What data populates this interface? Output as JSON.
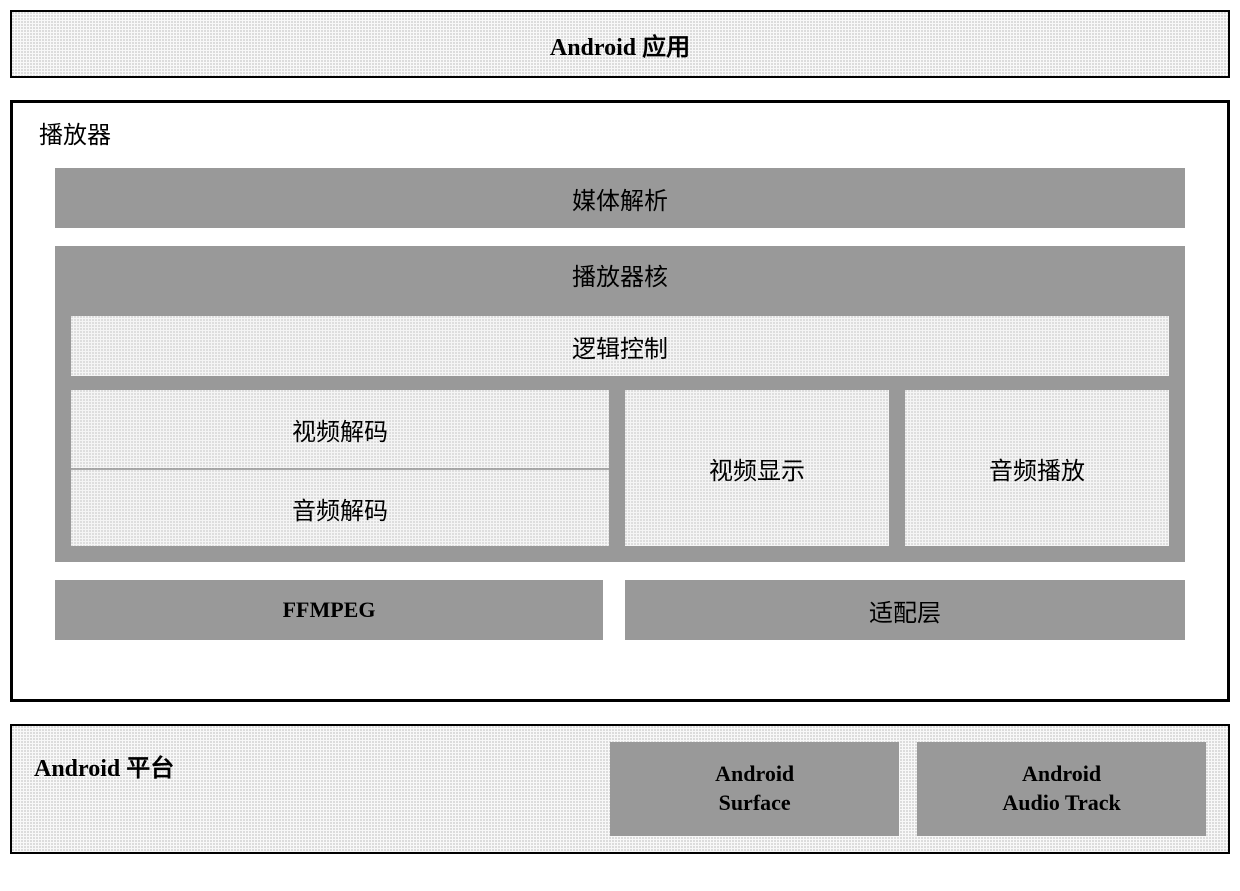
{
  "diagram": {
    "type": "architecture-block-diagram",
    "background_color": "#ffffff",
    "light_fill": "#f8f8f8",
    "dark_fill": "#b0b0b0",
    "border_color": "#000000",
    "text_color": "#000000",
    "title_fontsize": 24,
    "label_fontsize": 24,
    "english_fontsize": 22
  },
  "top": {
    "label": "Android 应用"
  },
  "player": {
    "title": "播放器",
    "media_parse": "媒体解析",
    "core": {
      "title": "播放器核",
      "logic_control": "逻辑控制",
      "video_decode": "视频解码",
      "audio_decode": "音频解码",
      "video_display": "视频显示",
      "audio_play": "音频播放"
    },
    "ffmpeg": "FFMPEG",
    "adapter": "适配层"
  },
  "platform": {
    "title": "Android 平台",
    "surface": "Android\nSurface",
    "audio_track": "Android\nAudio Track"
  }
}
